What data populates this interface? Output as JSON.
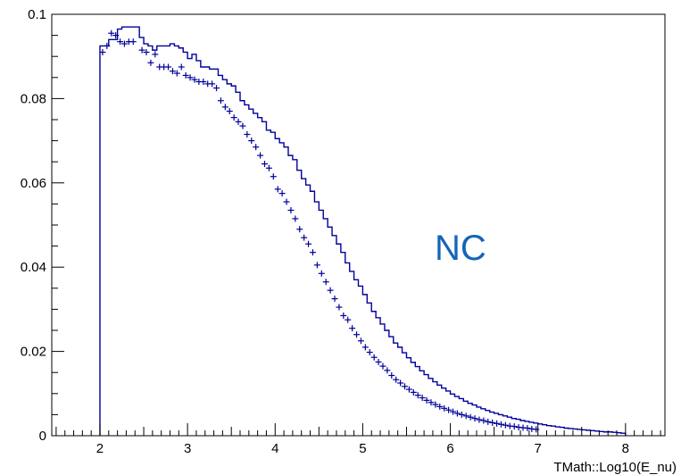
{
  "colors": {
    "series": "#000099",
    "annotation": "#1565b8",
    "axis": "#000000",
    "background": "#ffffff"
  },
  "chart_data": {
    "type": "line",
    "title": "",
    "xlabel": "TMath::Log10(E_nu)",
    "ylabel": "",
    "xlim": [
      1.45,
      8.45
    ],
    "ylim": [
      0,
      0.1
    ],
    "grid": false,
    "annotation": "NC",
    "x_ticks": [
      "2",
      "3",
      "4",
      "5",
      "6",
      "7",
      "8"
    ],
    "y_ticks": [
      "0",
      "0.02",
      "0.04",
      "0.06",
      "0.08",
      "0.1"
    ],
    "series": [
      {
        "style": "step-histogram",
        "bin_width": 0.05,
        "x_start": 2.0,
        "values": [
          0.0925,
          0.0925,
          0.094,
          0.094,
          0.0965,
          0.097,
          0.097,
          0.097,
          0.097,
          0.0945,
          0.093,
          0.0925,
          0.0915,
          0.0925,
          0.0925,
          0.0925,
          0.093,
          0.0925,
          0.092,
          0.091,
          0.0895,
          0.0905,
          0.089,
          0.0875,
          0.0875,
          0.087,
          0.087,
          0.0855,
          0.0845,
          0.0835,
          0.083,
          0.0815,
          0.0795,
          0.0785,
          0.0775,
          0.0765,
          0.0755,
          0.0745,
          0.0725,
          0.072,
          0.0705,
          0.0695,
          0.0685,
          0.0665,
          0.0655,
          0.063,
          0.061,
          0.0595,
          0.058,
          0.0555,
          0.0535,
          0.0515,
          0.0495,
          0.0475,
          0.0455,
          0.0435,
          0.041,
          0.039,
          0.037,
          0.0355,
          0.0335,
          0.0315,
          0.0295,
          0.028,
          0.0265,
          0.025,
          0.0235,
          0.022,
          0.021,
          0.0197,
          0.0185,
          0.0174,
          0.0164,
          0.0154,
          0.0145,
          0.0136,
          0.0128,
          0.012,
          0.0113,
          0.0106,
          0.0099,
          0.0093,
          0.0088,
          0.0082,
          0.0077,
          0.0073,
          0.0068,
          0.0064,
          0.006,
          0.0056,
          0.0053,
          0.005,
          0.0047,
          0.0044,
          0.0041,
          0.0039,
          0.0036,
          0.0034,
          0.0032,
          0.003,
          0.0028,
          0.0026,
          0.0024,
          0.0023,
          0.0021,
          0.002,
          0.0018,
          0.0017,
          0.0016,
          0.0015,
          0.0014,
          0.0013,
          0.0012,
          0.0011,
          0.001,
          0.0009,
          0.0009,
          0.0008,
          0.0007,
          0.0006
        ]
      },
      {
        "style": "points",
        "x": [
          2.03,
          2.08,
          2.13,
          2.18,
          2.23,
          2.28,
          2.33,
          2.38,
          2.48,
          2.53,
          2.58,
          2.63,
          2.68,
          2.73,
          2.78,
          2.83,
          2.88,
          2.93,
          2.98,
          3.03,
          3.08,
          3.13,
          3.18,
          3.23,
          3.28,
          3.33,
          3.38,
          3.43,
          3.48,
          3.53,
          3.58,
          3.63,
          3.68,
          3.73,
          3.78,
          3.83,
          3.88,
          3.93,
          3.98,
          4.03,
          4.08,
          4.13,
          4.18,
          4.23,
          4.28,
          4.33,
          4.38,
          4.43,
          4.48,
          4.53,
          4.58,
          4.63,
          4.68,
          4.73,
          4.78,
          4.83,
          4.88,
          4.93,
          4.98,
          5.03,
          5.08,
          5.13,
          5.18,
          5.23,
          5.28,
          5.33,
          5.38,
          5.43,
          5.48,
          5.53,
          5.58,
          5.63,
          5.68,
          5.73,
          5.78,
          5.83,
          5.88,
          5.93,
          5.98,
          6.03,
          6.08,
          6.13,
          6.18,
          6.23,
          6.28,
          6.33,
          6.38,
          6.43,
          6.48,
          6.53,
          6.58,
          6.63,
          6.68,
          6.73,
          6.78,
          6.83,
          6.88,
          6.93,
          6.98
        ],
        "y": [
          0.091,
          0.0925,
          0.0955,
          0.095,
          0.0935,
          0.093,
          0.0935,
          0.0935,
          0.0915,
          0.091,
          0.0885,
          0.0905,
          0.0875,
          0.0875,
          0.0875,
          0.0865,
          0.086,
          0.0875,
          0.0855,
          0.085,
          0.0845,
          0.084,
          0.084,
          0.0835,
          0.0835,
          0.0825,
          0.0795,
          0.078,
          0.077,
          0.0755,
          0.0745,
          0.0735,
          0.0715,
          0.07,
          0.0685,
          0.0665,
          0.0645,
          0.0635,
          0.0615,
          0.0585,
          0.0575,
          0.0555,
          0.0535,
          0.0515,
          0.049,
          0.047,
          0.0455,
          0.0435,
          0.0405,
          0.0385,
          0.0365,
          0.0345,
          0.0325,
          0.0305,
          0.0285,
          0.0275,
          0.0255,
          0.024,
          0.0225,
          0.021,
          0.0198,
          0.0186,
          0.0175,
          0.0165,
          0.0155,
          0.0143,
          0.0133,
          0.0125,
          0.0117,
          0.011,
          0.0103,
          0.0096,
          0.009,
          0.0084,
          0.0079,
          0.0074,
          0.0069,
          0.0065,
          0.0061,
          0.0057,
          0.0053,
          0.005,
          0.0047,
          0.0044,
          0.0041,
          0.0038,
          0.0036,
          0.0033,
          0.0031,
          0.0029,
          0.0027,
          0.0025,
          0.0023,
          0.0022,
          0.002,
          0.0019,
          0.0018,
          0.0016,
          0.0015
        ]
      }
    ]
  }
}
